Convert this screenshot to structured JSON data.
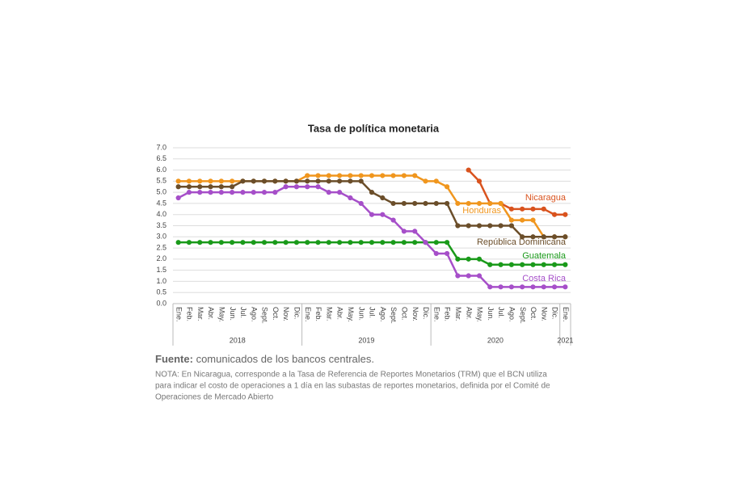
{
  "chart_data": {
    "type": "line",
    "title": "Tasa de política monetaria",
    "categories": [
      "Ene.",
      "Feb.",
      "Mar.",
      "Abr.",
      "May.",
      "Jun.",
      "Jul.",
      "Ago.",
      "Sept.",
      "Oct.",
      "Nov.",
      "Dic.",
      "Ene.",
      "Feb.",
      "Mar.",
      "Abr.",
      "May.",
      "Jun.",
      "Jul.",
      "Ago.",
      "Sept.",
      "Oct.",
      "Nov.",
      "Dic.",
      "Ene.",
      "Feb.",
      "Mar.",
      "Abr.",
      "May.",
      "Jun.",
      "Jul.",
      "Ago.",
      "Sept.",
      "Oct.",
      "Nov.",
      "Dic.",
      "Ene."
    ],
    "groups": [
      {
        "label": "2018",
        "size": 12
      },
      {
        "label": "2019",
        "size": 12
      },
      {
        "label": "2020",
        "size": 12
      },
      {
        "label": "2021",
        "size": 1
      }
    ],
    "ylim": [
      0,
      7
    ],
    "yticks": [
      {
        "value": 0,
        "label": "0.0"
      },
      {
        "value": 0.5,
        "label": "0.5"
      },
      {
        "value": 1,
        "label": "1.0"
      },
      {
        "value": 1.5,
        "label": "1.5"
      },
      {
        "value": 2,
        "label": "2.0"
      },
      {
        "value": 2.5,
        "label": "2.5"
      },
      {
        "value": 3,
        "label": "3.0"
      },
      {
        "value": 3.5,
        "label": "3.5"
      },
      {
        "value": 4,
        "label": "4.0"
      },
      {
        "value": 4.5,
        "label": "4.5"
      },
      {
        "value": 5,
        "label": "5.0"
      },
      {
        "value": 5.5,
        "label": "5.5"
      },
      {
        "value": 6,
        "label": "6.0"
      },
      {
        "value": 6.5,
        "label": "6.5"
      },
      {
        "value": 7,
        "label": "7.0"
      }
    ],
    "grid": true,
    "series": [
      {
        "name": "Nicaragua",
        "color": "#d9531e",
        "values": [
          null,
          null,
          null,
          null,
          null,
          null,
          null,
          null,
          null,
          null,
          null,
          null,
          null,
          null,
          null,
          null,
          null,
          null,
          null,
          null,
          null,
          null,
          null,
          null,
          null,
          null,
          null,
          6.0,
          5.5,
          4.5,
          4.5,
          4.25,
          4.25,
          4.25,
          4.25,
          4.0,
          4.0
        ]
      },
      {
        "name": "Honduras",
        "color": "#f0961e",
        "values": [
          5.5,
          5.5,
          5.5,
          5.5,
          5.5,
          5.5,
          5.5,
          5.5,
          5.5,
          5.5,
          5.5,
          5.5,
          5.75,
          5.75,
          5.75,
          5.75,
          5.75,
          5.75,
          5.75,
          5.75,
          5.75,
          5.75,
          5.75,
          5.5,
          5.5,
          5.25,
          4.5,
          4.5,
          4.5,
          4.5,
          4.5,
          3.75,
          3.75,
          3.75,
          3.0,
          3.0,
          3.0
        ]
      },
      {
        "name": "República Dominicana",
        "color": "#6b4e2a",
        "values": [
          5.25,
          5.25,
          5.25,
          5.25,
          5.25,
          5.25,
          5.5,
          5.5,
          5.5,
          5.5,
          5.5,
          5.5,
          5.5,
          5.5,
          5.5,
          5.5,
          5.5,
          5.5,
          5.0,
          4.75,
          4.5,
          4.5,
          4.5,
          4.5,
          4.5,
          4.5,
          3.5,
          3.5,
          3.5,
          3.5,
          3.5,
          3.5,
          3.0,
          3.0,
          3.0,
          3.0,
          3.0
        ]
      },
      {
        "name": "Guatemala",
        "color": "#1a9a1a",
        "values": [
          2.75,
          2.75,
          2.75,
          2.75,
          2.75,
          2.75,
          2.75,
          2.75,
          2.75,
          2.75,
          2.75,
          2.75,
          2.75,
          2.75,
          2.75,
          2.75,
          2.75,
          2.75,
          2.75,
          2.75,
          2.75,
          2.75,
          2.75,
          2.75,
          2.75,
          2.75,
          2.0,
          2.0,
          2.0,
          1.75,
          1.75,
          1.75,
          1.75,
          1.75,
          1.75,
          1.75,
          1.75
        ]
      },
      {
        "name": "Costa Rica",
        "color": "#a64fc9",
        "values": [
          4.75,
          5.0,
          5.0,
          5.0,
          5.0,
          5.0,
          5.0,
          5.0,
          5.0,
          5.0,
          5.25,
          5.25,
          5.25,
          5.25,
          5.0,
          5.0,
          4.75,
          4.5,
          4.0,
          4.0,
          3.75,
          3.25,
          3.25,
          2.75,
          2.25,
          2.25,
          1.25,
          1.25,
          1.25,
          0.75,
          0.75,
          0.75,
          0.75,
          0.75,
          0.75,
          0.75,
          0.75
        ]
      }
    ]
  },
  "source": {
    "label": "Fuente:",
    "text": "comunicados de los bancos centrales."
  },
  "note": [
    "NOTA: En Nicaragua, corresponde a la Tasa de Referencia de Reportes Monetarios (TRM) que el BCN utiliza",
    "para indicar el costo de operaciones a 1 día en las subastas de reportes monetarios, definida por el Comité de",
    "Operaciones de Mercado Abierto"
  ]
}
